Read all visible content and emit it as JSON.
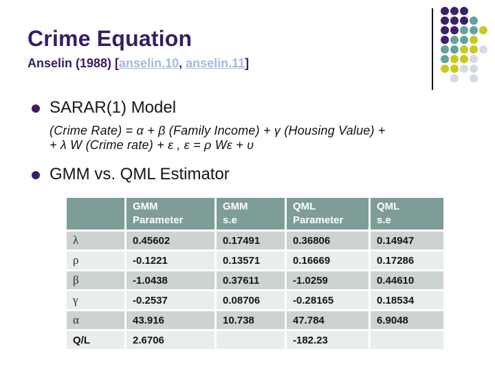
{
  "slide": {
    "title": "Crime Equation",
    "subtitle_prefix": "Anselin (1988) [",
    "links": [
      {
        "label": "anselin.10"
      },
      {
        "label": "anselin.11"
      }
    ],
    "subtitle_separator": ", ",
    "subtitle_suffix": "]"
  },
  "bullets": {
    "item1": "SARAR(1) Model",
    "equation": {
      "line1": "(Crime Rate) = α + β (Family Income) + γ (Housing Value) +",
      "line2": "+ λ W (Crime rate) + ε ,  ε = ρ Wε + υ"
    },
    "item2": "GMM vs. QML Estimator"
  },
  "table": {
    "header_cells": [
      [
        "",
        ""
      ],
      [
        "GMM",
        "Parameter"
      ],
      [
        "GMM",
        "s.e"
      ],
      [
        "QML",
        "Parameter"
      ],
      [
        "QML",
        "s.e"
      ]
    ],
    "rows": [
      {
        "label": "λ",
        "symbol": true,
        "values": [
          "0.45602",
          "0.17491",
          "0.36806",
          "0.14947"
        ]
      },
      {
        "label": "ρ",
        "symbol": true,
        "values": [
          "-0.1221",
          "0.13571",
          "0.16669",
          "0.17286"
        ]
      },
      {
        "label": "β",
        "symbol": true,
        "values": [
          "-1.0438",
          "0.37611",
          "-1.0259",
          "0.44610"
        ]
      },
      {
        "label": "γ",
        "symbol": true,
        "values": [
          "-0.2537",
          "0.08706",
          "-0.28165",
          "0.18534"
        ]
      },
      {
        "label": "α",
        "symbol": true,
        "values": [
          "43.916",
          "10.738",
          "47.784",
          "6.9048"
        ]
      },
      {
        "label": "Q/L",
        "symbol": false,
        "values": [
          "2.6706",
          "",
          "-182.23",
          ""
        ]
      }
    ]
  },
  "colors": {
    "title_purple": "#371c63",
    "link_blue": "#a6b9dc",
    "bullet_purple": "#3a1e63",
    "header_teal": "#7e9d99",
    "row_band_dark": "#cbd4d1",
    "row_band_light": "#e9edeb",
    "text_black": "#161616"
  },
  "decor": {
    "pattern": [
      "PPP..",
      "PPPT.",
      "PPTTY",
      "PTTY.",
      "TTYYG",
      "TYYG.",
      "YYGG.",
      ".G.G."
    ],
    "dot_colors": {
      "P": "#3b2166",
      "T": "#63a29e",
      "Y": "#c6ca1f",
      "G": "#d6d9e6"
    }
  }
}
